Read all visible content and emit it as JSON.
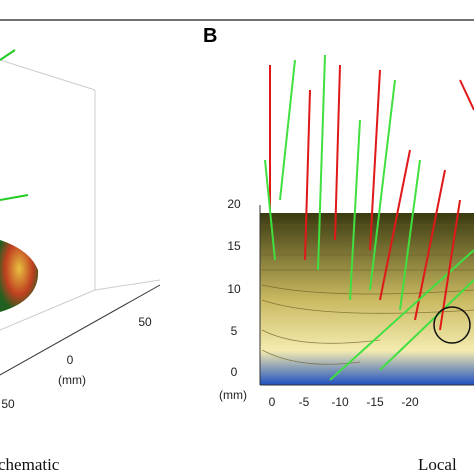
{
  "panel_a": {
    "ticks": [
      50,
      0,
      50
    ],
    "axis_unit": "(mm)",
    "caption": "chematic"
  },
  "panel_b": {
    "label": "B",
    "y_ticks": [
      20,
      15,
      10,
      5,
      0
    ],
    "x_ticks": [
      0,
      -5,
      -10,
      -15,
      -20
    ],
    "axis_unit": "(mm)",
    "caption": "Local"
  }
}
